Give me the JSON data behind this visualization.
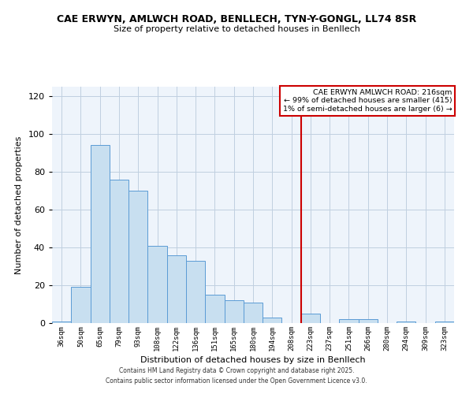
{
  "title": "CAE ERWYN, AMLWCH ROAD, BENLLECH, TYN-Y-GONGL, LL74 8SR",
  "subtitle": "Size of property relative to detached houses in Benllech",
  "xlabel": "Distribution of detached houses by size in Benllech",
  "ylabel": "Number of detached properties",
  "bar_labels": [
    "36sqm",
    "50sqm",
    "65sqm",
    "79sqm",
    "93sqm",
    "108sqm",
    "122sqm",
    "136sqm",
    "151sqm",
    "165sqm",
    "180sqm",
    "194sqm",
    "208sqm",
    "223sqm",
    "237sqm",
    "251sqm",
    "266sqm",
    "280sqm",
    "294sqm",
    "309sqm",
    "323sqm"
  ],
  "bar_values": [
    1,
    19,
    94,
    76,
    70,
    41,
    36,
    33,
    15,
    12,
    11,
    3,
    0,
    5,
    0,
    2,
    2,
    0,
    1,
    0,
    1
  ],
  "bar_color": "#c8dff0",
  "bar_edge_color": "#5b9bd5",
  "ylim": [
    0,
    125
  ],
  "yticks": [
    0,
    20,
    40,
    60,
    80,
    100,
    120
  ],
  "vline_x": 13.0,
  "vline_color": "#cc0000",
  "legend_title": "CAE ERWYN AMLWCH ROAD: 216sqm",
  "legend_line1": "← 99% of detached houses are smaller (415)",
  "legend_line2": "1% of semi-detached houses are larger (6) →",
  "legend_box_color": "#ffffff",
  "legend_border_color": "#cc0000",
  "footer_line1": "Contains HM Land Registry data © Crown copyright and database right 2025.",
  "footer_line2": "Contains public sector information licensed under the Open Government Licence v3.0.",
  "bg_color": "#ffffff",
  "plot_bg_color": "#eef4fb",
  "grid_color": "#c0cfe0"
}
